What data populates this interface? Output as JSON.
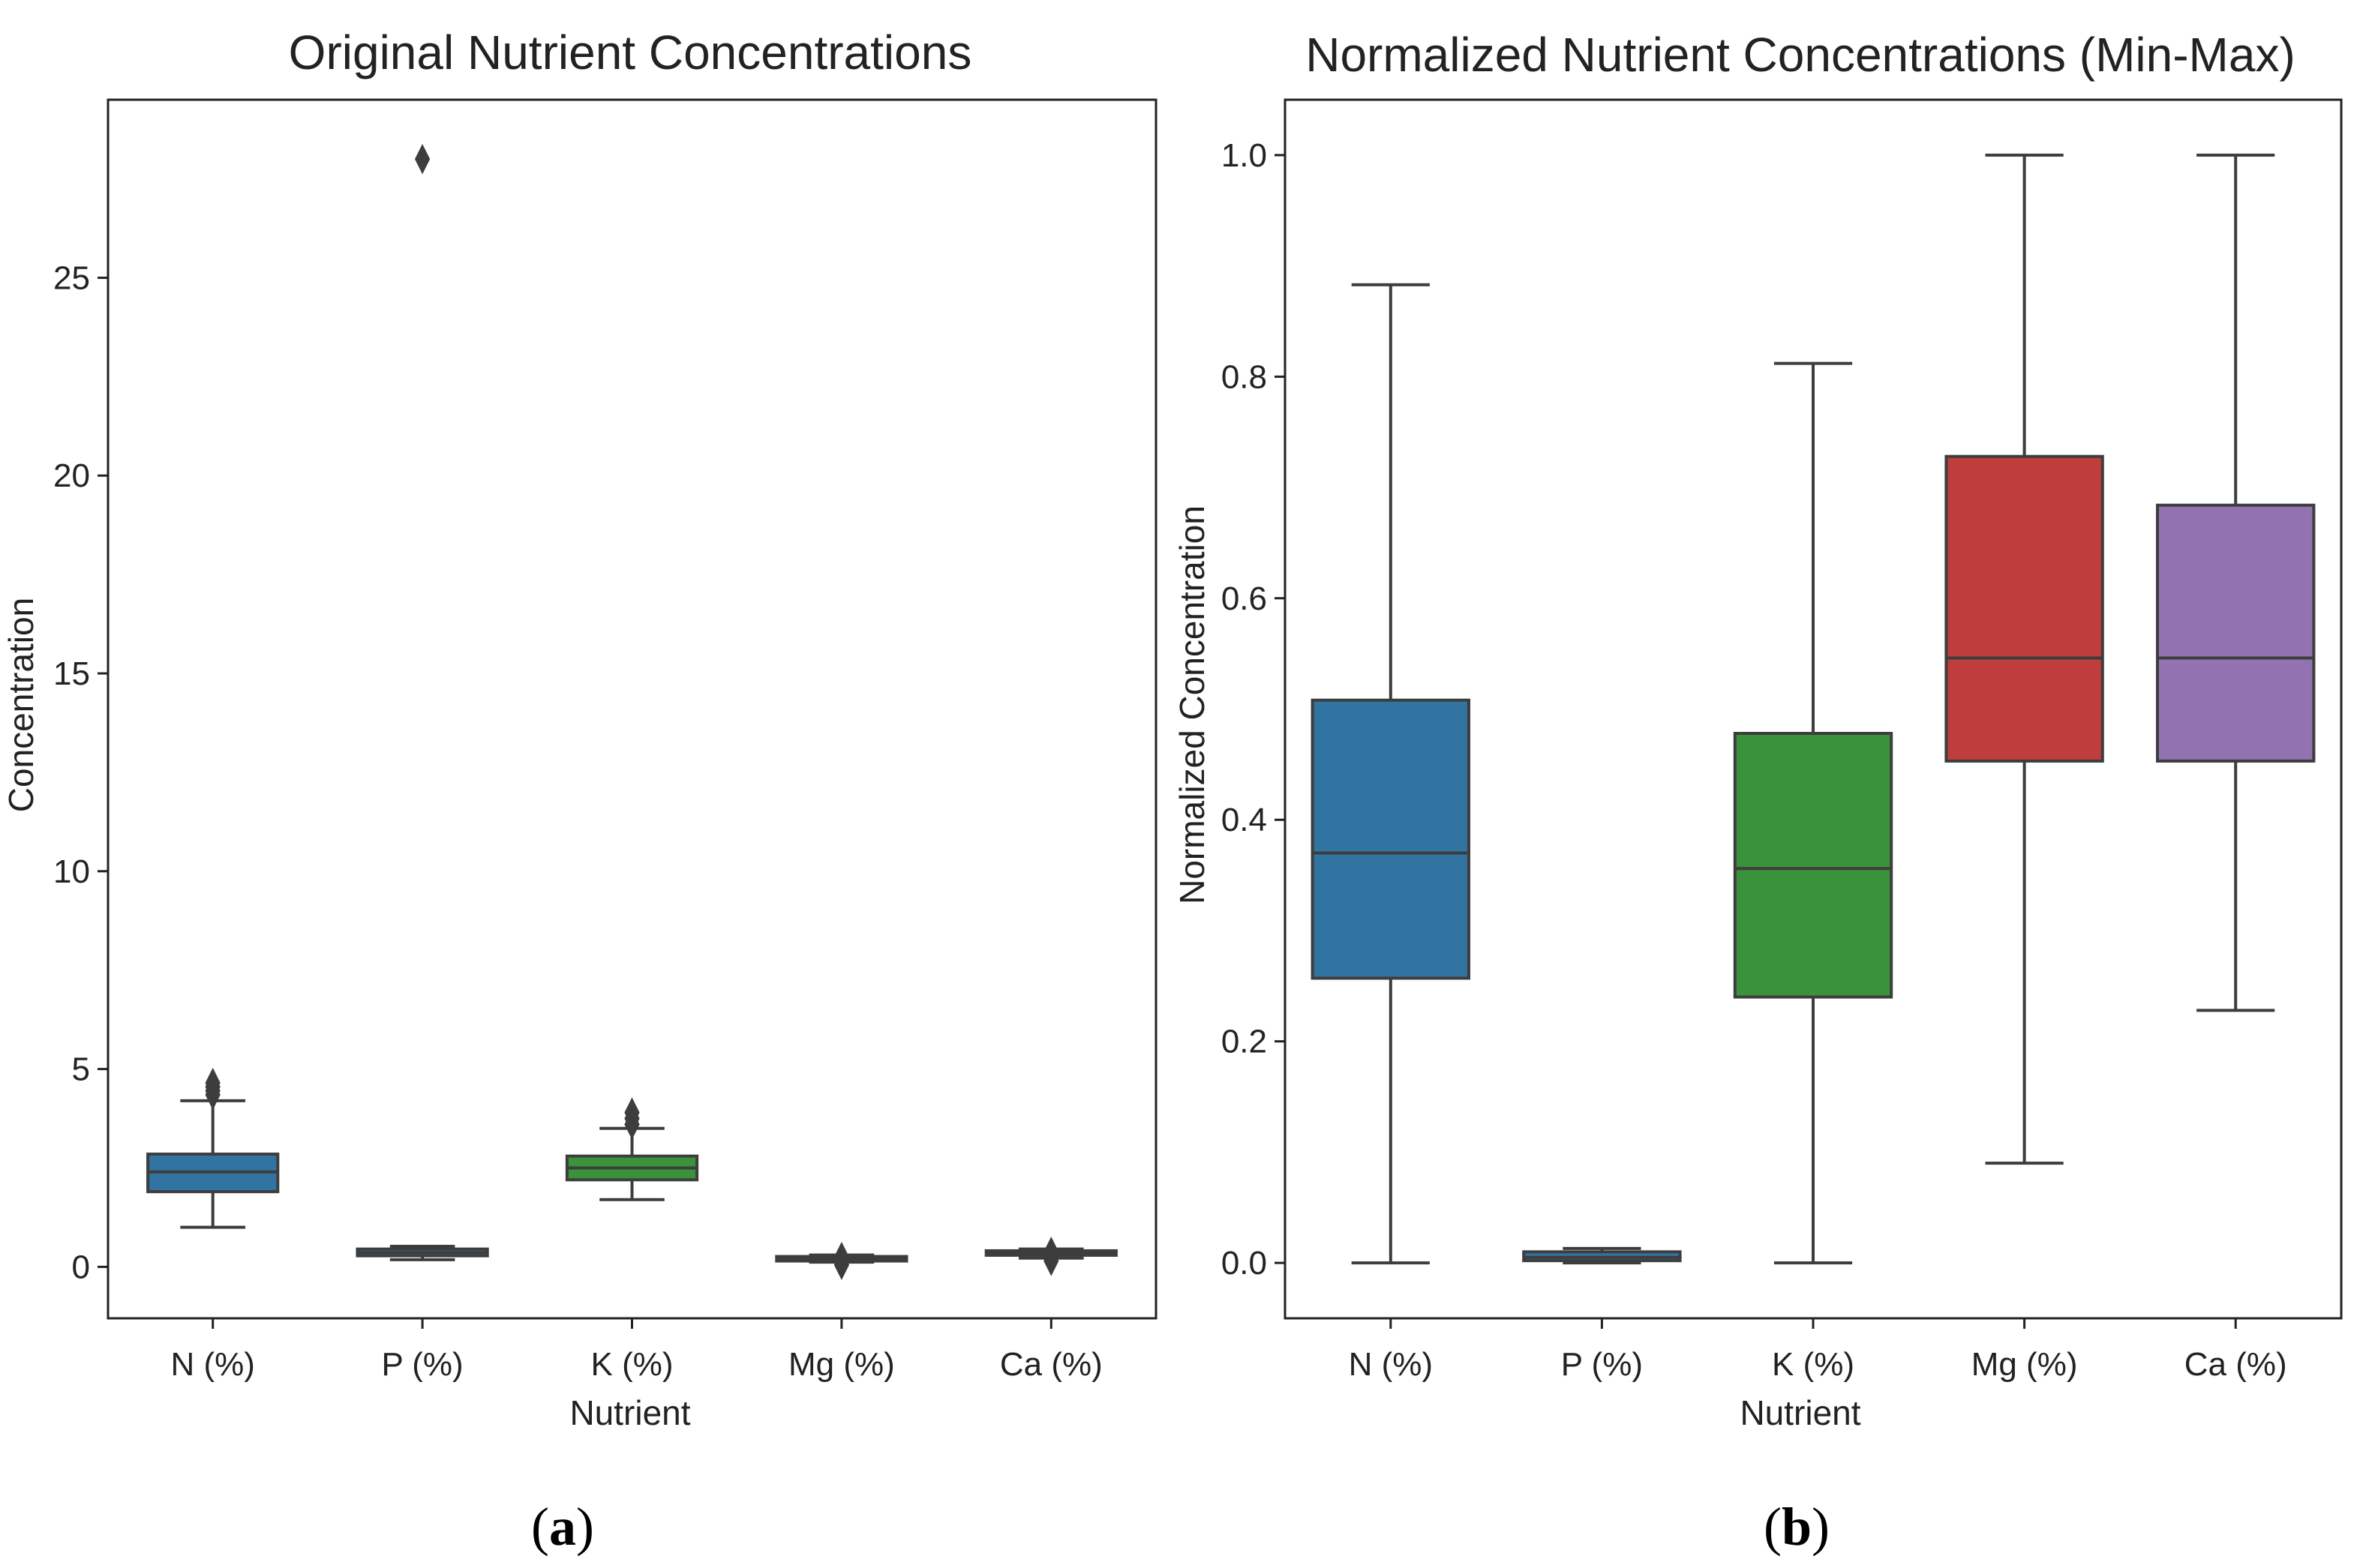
{
  "chart_data": [
    {
      "type": "boxplot",
      "panel_label_open": "(",
      "panel_label_letter": "a",
      "panel_label_close": ")",
      "title": "Original Nutrient Concentrations",
      "xlabel": "Nutrient",
      "ylabel": "Concentration",
      "ylim": [
        -1.3,
        29.5
      ],
      "yticks": [
        0,
        5,
        10,
        15,
        20,
        25
      ],
      "ytick_labels": [
        "0",
        "5",
        "10",
        "15",
        "20",
        "25"
      ],
      "categories": [
        "N (%)",
        "P (%)",
        "K (%)",
        "Mg (%)",
        "Ca (%)"
      ],
      "boxes": [
        {
          "name": "N (%)",
          "color": "#3274a1",
          "whislo": 1.0,
          "q1": 1.9,
          "med": 2.4,
          "q3": 2.85,
          "whishi": 4.2,
          "fliers": [
            4.35,
            4.45,
            4.55,
            4.65
          ]
        },
        {
          "name": "P (%)",
          "color": "#3274a1",
          "whislo": 0.18,
          "q1": 0.28,
          "med": 0.36,
          "q3": 0.45,
          "whishi": 0.52,
          "fliers": [
            28.0
          ]
        },
        {
          "name": "K (%)",
          "color": "#3a923a",
          "whislo": 1.7,
          "q1": 2.2,
          "med": 2.5,
          "q3": 2.8,
          "whishi": 3.5,
          "fliers": [
            3.6,
            3.75,
            3.9
          ]
        },
        {
          "name": "Mg (%)",
          "color": "#3274a1",
          "whislo": 0.12,
          "q1": 0.17,
          "med": 0.2,
          "q3": 0.24,
          "whishi": 0.3,
          "fliers": [
            0.05,
            0.25
          ]
        },
        {
          "name": "Ca (%)",
          "color": "#3274a1",
          "whislo": 0.22,
          "q1": 0.3,
          "med": 0.35,
          "q3": 0.4,
          "whishi": 0.45,
          "fliers": [
            0.15,
            0.38
          ]
        }
      ]
    },
    {
      "type": "boxplot",
      "panel_label_open": "(",
      "panel_label_letter": "b",
      "panel_label_close": ")",
      "title": "Normalized Nutrient Concentrations (Min-Max)",
      "xlabel": "Nutrient",
      "ylabel": "Normalized Concentration",
      "ylim": [
        -0.05,
        1.05
      ],
      "yticks": [
        0.0,
        0.2,
        0.4,
        0.6,
        0.8,
        1.0
      ],
      "ytick_labels": [
        "0.0",
        "0.2",
        "0.4",
        "0.6",
        "0.8",
        "1.0"
      ],
      "categories": [
        "N (%)",
        "P (%)",
        "K (%)",
        "Mg (%)",
        "Ca (%)"
      ],
      "boxes": [
        {
          "name": "N (%)",
          "color": "#3274a1",
          "whislo": 0.0,
          "q1": 0.257,
          "med": 0.37,
          "q3": 0.508,
          "whishi": 0.883,
          "fliers": []
        },
        {
          "name": "P (%)",
          "color": "#3274a1",
          "whislo": 0.0,
          "q1": 0.002,
          "med": 0.005,
          "q3": 0.01,
          "whishi": 0.013,
          "fliers": []
        },
        {
          "name": "K (%)",
          "color": "#3a923a",
          "whislo": 0.0,
          "q1": 0.24,
          "med": 0.356,
          "q3": 0.478,
          "whishi": 0.812,
          "fliers": []
        },
        {
          "name": "Mg (%)",
          "color": "#c03d3e",
          "whislo": 0.09,
          "q1": 0.453,
          "med": 0.546,
          "q3": 0.728,
          "whishi": 1.0,
          "fliers": []
        },
        {
          "name": "Ca (%)",
          "color": "#9372b2",
          "whislo": 0.228,
          "q1": 0.453,
          "med": 0.546,
          "q3": 0.684,
          "whishi": 1.0,
          "fliers": []
        }
      ]
    }
  ]
}
